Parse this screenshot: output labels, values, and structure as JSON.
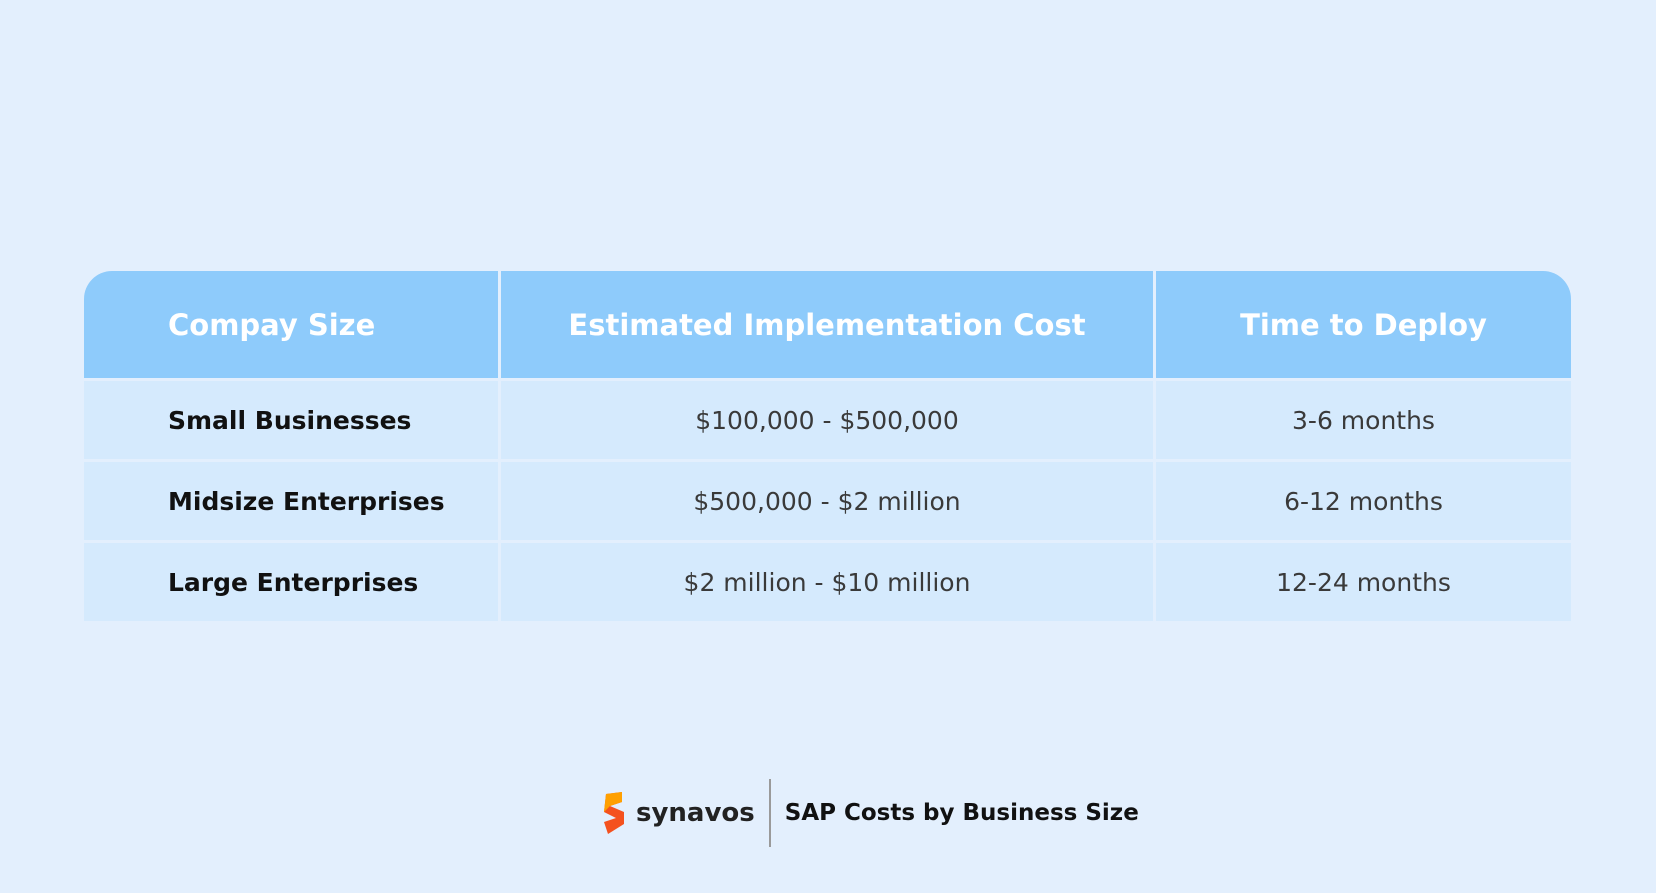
{
  "table": {
    "columns": [
      "Compay Size",
      "Estimated Implementation Cost",
      "Time to Deploy"
    ],
    "rows": [
      [
        "Small Businesses",
        "$100,000 - $500,000",
        "3-6 months"
      ],
      [
        "Midsize Enterprises",
        "$500,000 - $2 million",
        "6-12 months"
      ],
      [
        "Large Enterprises",
        "$2 million - $10 million",
        "12-24 months"
      ]
    ]
  },
  "footer": {
    "brand": "synavos",
    "caption": "SAP Costs by Business Size"
  }
}
